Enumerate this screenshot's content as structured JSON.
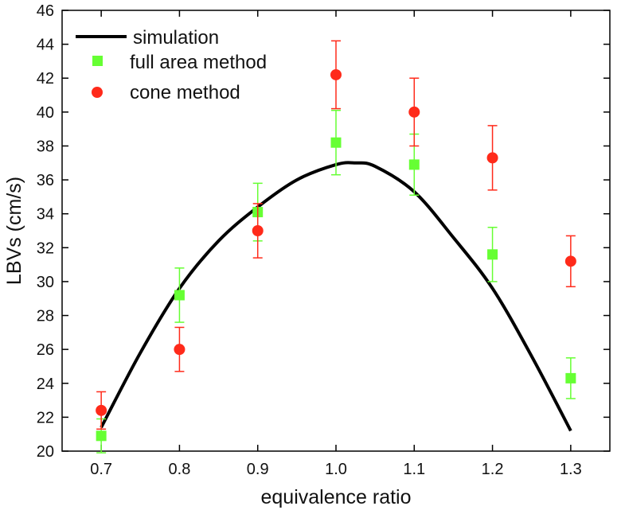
{
  "chart_data": {
    "type": "scatter",
    "xlabel": "equivalence ratio",
    "ylabel": "LBVs (cm/s)",
    "xlim": [
      0.65,
      1.35
    ],
    "ylim": [
      20,
      46
    ],
    "x_ticks": [
      "0.7",
      "0.8",
      "0.9",
      "1.0",
      "1.1",
      "1.2",
      "1.3"
    ],
    "y_ticks": [
      "20",
      "22",
      "24",
      "26",
      "28",
      "30",
      "32",
      "34",
      "36",
      "38",
      "40",
      "42",
      "44",
      "46"
    ],
    "legend_position": "top-left",
    "grid": false,
    "series": [
      {
        "name": "simulation",
        "kind": "line",
        "color": "#000000",
        "x": [
          0.7,
          0.75,
          0.8,
          0.85,
          0.9,
          0.95,
          1.0,
          1.025,
          1.05,
          1.1,
          1.15,
          1.2,
          1.25,
          1.3
        ],
        "y": [
          21.4,
          25.8,
          29.6,
          32.4,
          34.4,
          36.0,
          36.9,
          37.0,
          36.8,
          35.3,
          32.6,
          29.6,
          25.6,
          21.2
        ]
      },
      {
        "name": "full area method",
        "kind": "points",
        "marker": "square",
        "color": "#66ff33",
        "x": [
          0.7,
          0.8,
          0.9,
          1.0,
          1.1,
          1.2,
          1.3
        ],
        "y": [
          20.9,
          29.2,
          34.1,
          38.2,
          36.9,
          31.6,
          24.3
        ],
        "yerr": [
          1.0,
          1.6,
          1.7,
          1.9,
          1.8,
          1.6,
          1.2
        ]
      },
      {
        "name": "cone method",
        "kind": "points",
        "marker": "circle",
        "color": "#ff2a1a",
        "x": [
          0.7,
          0.8,
          0.9,
          1.0,
          1.1,
          1.2,
          1.3
        ],
        "y": [
          22.4,
          26.0,
          33.0,
          42.2,
          40.0,
          37.3,
          31.2
        ],
        "yerr": [
          1.1,
          1.3,
          1.6,
          2.0,
          2.0,
          1.9,
          1.5
        ]
      }
    ]
  }
}
